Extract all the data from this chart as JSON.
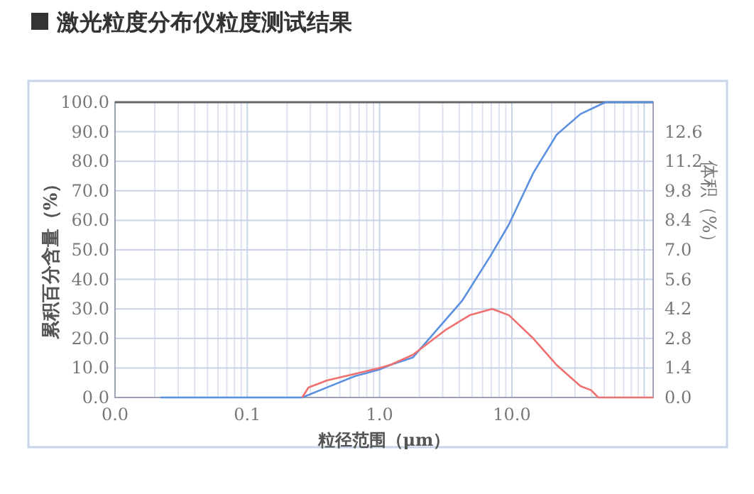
{
  "chart_data": {
    "type": "line",
    "title": "激光粒度分布仪粒度测试结果",
    "xlabel": "粒径范围（μm）",
    "ylabel": "累积百分含量（%）",
    "y2label": "体积（%）",
    "log": "x",
    "grid": true,
    "xlim": [
      0.01,
      117
    ],
    "xticks": [
      {
        "value": 0.01,
        "label": "0.0"
      },
      {
        "value": 0.1,
        "label": "0.1"
      },
      {
        "value": 1,
        "label": "1.0"
      },
      {
        "value": 10,
        "label": "10.0"
      }
    ],
    "ylim": [
      0,
      100
    ],
    "yticks": [
      {
        "value": 0,
        "label": "0.0"
      },
      {
        "value": 10,
        "label": "10.0"
      },
      {
        "value": 20,
        "label": "20.0"
      },
      {
        "value": 30,
        "label": "30.0"
      },
      {
        "value": 40,
        "label": "40.0"
      },
      {
        "value": 50,
        "label": "50.0"
      },
      {
        "value": 60,
        "label": "60.0"
      },
      {
        "value": 70,
        "label": "70.0"
      },
      {
        "value": 80,
        "label": "80.0"
      },
      {
        "value": 90,
        "label": "90.0"
      },
      {
        "value": 100,
        "label": "100.0"
      }
    ],
    "y2lim": [
      0,
      14
    ],
    "y2ticks": [
      {
        "value": 0,
        "label": "0.0"
      },
      1.4,
      2.8,
      4.2,
      5.6,
      {
        "value": 7,
        "label": "7.0"
      },
      8.4,
      9.8,
      11.2,
      12.6
    ],
    "series": [
      {
        "color": "#5b8fe0",
        "x": [
          0.022,
          0.26,
          0.4,
          0.65,
          1.0,
          1.2,
          1.78,
          4.2,
          6.9,
          9.5,
          14.5,
          21.8,
          33,
          51,
          117
        ],
        "values": [
          0,
          0,
          3.4,
          7.2,
          9.5,
          11,
          13.5,
          32.7,
          48,
          58.6,
          76,
          89,
          96,
          100,
          100
        ]
      },
      {
        "color": "#f07070",
        "axis": "y2",
        "x": [
          0.26,
          0.29,
          0.4,
          0.93,
          1.2,
          1.78,
          3.2,
          4.8,
          7.1,
          9.5,
          14.5,
          21.8,
          33,
          39.8,
          45,
          117
        ],
        "values": [
          0,
          0.47,
          0.81,
          1.35,
          1.54,
          2.02,
          3.23,
          3.9,
          4.2,
          3.9,
          2.8,
          1.54,
          0.54,
          0.34,
          0,
          0
        ]
      }
    ]
  }
}
